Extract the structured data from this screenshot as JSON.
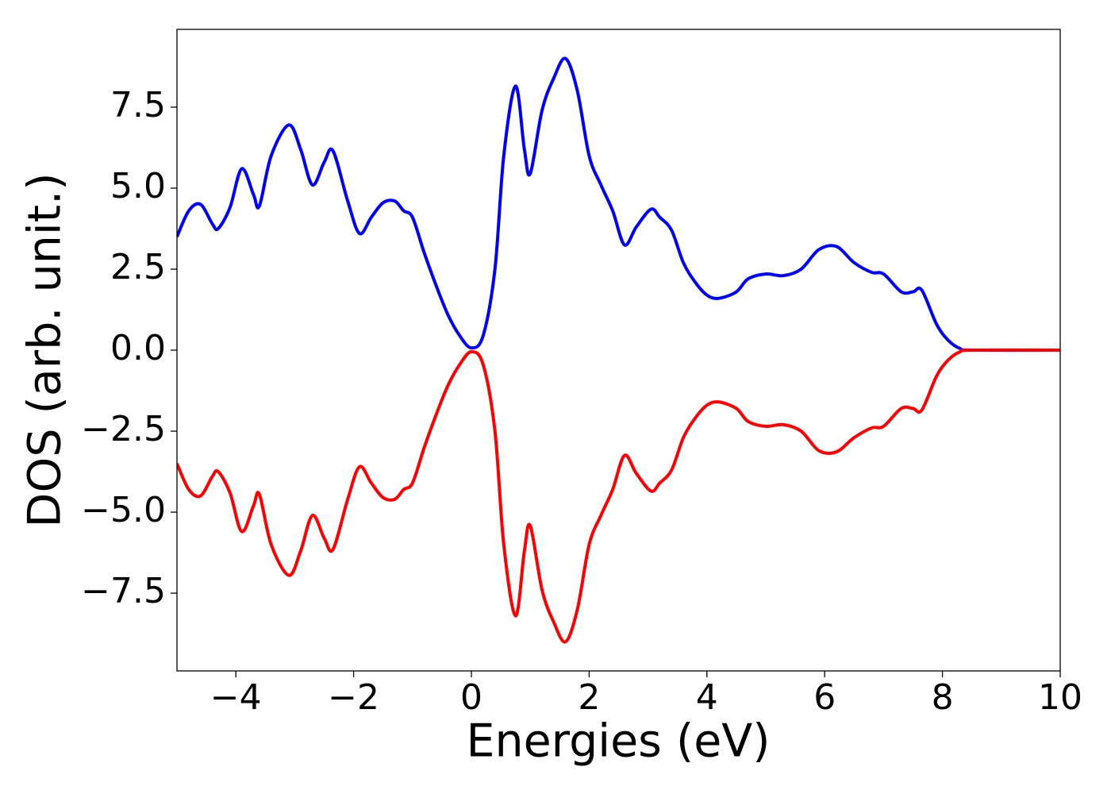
{
  "chart_data": {
    "type": "line",
    "xlabel": "Energies (eV)",
    "ylabel": "DOS (arb. unit.)",
    "xlim": [
      -5,
      10
    ],
    "ylim": [
      -9.9,
      9.9
    ],
    "xticks": [
      {
        "value": -4,
        "label": "−4"
      },
      {
        "value": -2,
        "label": "−2"
      },
      0,
      2,
      4,
      6,
      8,
      10
    ],
    "yticks": [
      {
        "value": -7.5,
        "label": "−7.5"
      },
      {
        "value": -5,
        "label": "−5.0"
      },
      {
        "value": -2.5,
        "label": "−2.5"
      },
      {
        "value": 0,
        "label": "0.0"
      },
      2.5,
      {
        "value": 5,
        "label": "5.0"
      },
      7.5
    ],
    "grid": false,
    "x": [
      -5,
      -4.8,
      -4.6,
      -4.4,
      -4.3,
      -4.1,
      -3.9,
      -3.7,
      -3.6,
      -3.4,
      -3.1,
      -2.9,
      -2.7,
      -2.5,
      -2.35,
      -2.1,
      -1.9,
      -1.7,
      -1.5,
      -1.3,
      -1.15,
      -1.0,
      -0.8,
      -0.6,
      -0.4,
      -0.2,
      0,
      0.2,
      0.4,
      0.55,
      0.75,
      0.9,
      1.0,
      1.2,
      1.4,
      1.6,
      1.8,
      2.0,
      2.2,
      2.4,
      2.6,
      2.8,
      3.05,
      3.2,
      3.4,
      3.6,
      3.8,
      4.0,
      4.2,
      4.5,
      4.7,
      5.0,
      5.3,
      5.6,
      5.9,
      6.2,
      6.5,
      6.8,
      7.0,
      7.3,
      7.5,
      7.65,
      7.9,
      8.1,
      8.3,
      8.5,
      10
    ],
    "series": [
      {
        "color": "#0000ff",
        "values": [
          3.5,
          4.3,
          4.5,
          3.9,
          3.75,
          4.4,
          5.6,
          4.8,
          4.45,
          6.0,
          6.95,
          6.2,
          5.1,
          5.8,
          6.15,
          4.6,
          3.6,
          4.1,
          4.55,
          4.6,
          4.3,
          4.1,
          3.0,
          2.0,
          1.1,
          0.45,
          0.07,
          0.45,
          2.5,
          6.0,
          8.15,
          6.2,
          5.45,
          7.4,
          8.4,
          9.0,
          8.0,
          6.0,
          5.1,
          4.3,
          3.25,
          3.8,
          4.35,
          4.1,
          3.7,
          2.7,
          2.1,
          1.7,
          1.6,
          1.8,
          2.2,
          2.35,
          2.3,
          2.5,
          3.1,
          3.2,
          2.7,
          2.4,
          2.35,
          1.8,
          1.8,
          1.85,
          0.8,
          0.3,
          0.05,
          0,
          0
        ]
      },
      {
        "color": "#ff0000",
        "values": [
          -3.5,
          -4.3,
          -4.5,
          -3.9,
          -3.75,
          -4.4,
          -5.6,
          -4.8,
          -4.45,
          -6.0,
          -6.95,
          -6.2,
          -5.1,
          -5.8,
          -6.15,
          -4.6,
          -3.6,
          -4.1,
          -4.55,
          -4.6,
          -4.3,
          -4.1,
          -3.0,
          -2.0,
          -1.1,
          -0.45,
          -0.05,
          -0.45,
          -2.5,
          -6.0,
          -8.2,
          -6.2,
          -5.42,
          -7.4,
          -8.4,
          -9.0,
          -8.0,
          -6.0,
          -5.1,
          -4.3,
          -3.25,
          -3.8,
          -4.35,
          -4.1,
          -3.7,
          -2.7,
          -2.1,
          -1.7,
          -1.6,
          -1.8,
          -2.2,
          -2.35,
          -2.3,
          -2.5,
          -3.1,
          -3.14,
          -2.7,
          -2.4,
          -2.35,
          -1.8,
          -1.8,
          -1.85,
          -0.8,
          -0.3,
          -0.05,
          0,
          0
        ]
      }
    ]
  }
}
